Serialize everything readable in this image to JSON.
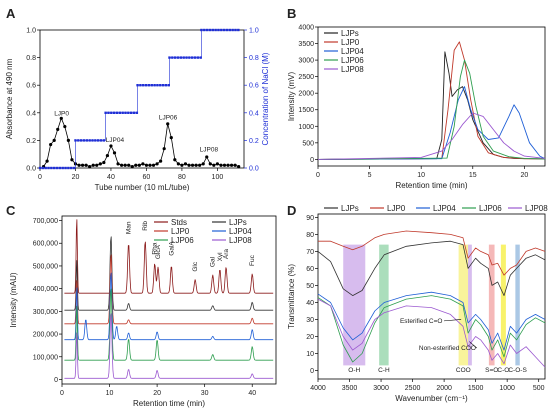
{
  "chart_data": [
    {
      "panel": "A",
      "type": "line",
      "xlabel": "Tube number (10 mL/tube)",
      "ylabel": "Absorbance at 490 nm",
      "ylabel_right": "Concentration of NaCl (M)",
      "xlim": [
        0,
        115
      ],
      "ylim": [
        0,
        1.0
      ],
      "ylim_right": [
        0,
        1.0
      ],
      "xticks": [
        "0",
        "20",
        "40",
        "60",
        "80",
        "100"
      ],
      "yticks": [
        "0.0",
        "0.2",
        "0.4",
        "0.6",
        "0.8",
        "1.0"
      ],
      "yticks_right": [
        "0.0",
        "0.2",
        "0.4",
        "0.6",
        "0.8",
        "1.0"
      ],
      "series": [
        {
          "name": "",
          "color": "#000000",
          "marker": "circle",
          "x": [
            2,
            4,
            6,
            8,
            10,
            12,
            14,
            16,
            18,
            20,
            22,
            24,
            26,
            28,
            30,
            32,
            34,
            36,
            38,
            40,
            42,
            44,
            46,
            48,
            50,
            52,
            54,
            56,
            58,
            60,
            62,
            64,
            66,
            68,
            70,
            72,
            74,
            76,
            78,
            80,
            82,
            84,
            86,
            88,
            90,
            92,
            94,
            96,
            98,
            100,
            102,
            104,
            106,
            108,
            110,
            112
          ],
          "y": [
            0.01,
            0.05,
            0.17,
            0.2,
            0.28,
            0.36,
            0.3,
            0.2,
            0.06,
            0.03,
            0.02,
            0.02,
            0.02,
            0.01,
            0.02,
            0.02,
            0.03,
            0.04,
            0.09,
            0.16,
            0.11,
            0.03,
            0.02,
            0.02,
            0.02,
            0.01,
            0.02,
            0.02,
            0.03,
            0.02,
            0.02,
            0.02,
            0.03,
            0.05,
            0.14,
            0.32,
            0.22,
            0.06,
            0.03,
            0.02,
            0.03,
            0.02,
            0.02,
            0.02,
            0.02,
            0.03,
            0.08,
            0.03,
            0.02,
            0.03,
            0.02,
            0.02,
            0.02,
            0.02,
            0.02,
            0.01
          ]
        },
        {
          "name": "",
          "color": "#1f2fd6",
          "marker": "square",
          "axis": "right",
          "steps": [
            [
              0,
              0
            ],
            [
              20,
              0
            ],
            [
              20,
              0.2
            ],
            [
              37,
              0.2
            ],
            [
              37,
              0.4
            ],
            [
              55,
              0.4
            ],
            [
              55,
              0.6
            ],
            [
              73,
              0.6
            ],
            [
              73,
              0.8
            ],
            [
              91,
              0.8
            ],
            [
              91,
              1.0
            ],
            [
              112,
              1.0
            ]
          ]
        }
      ],
      "annotations": [
        {
          "text": "LJP0",
          "x": 8,
          "y": 0.38
        },
        {
          "text": "LJP04",
          "x": 37,
          "y": 0.19
        },
        {
          "text": "LJP06",
          "x": 67,
          "y": 0.35
        },
        {
          "text": "LJP08",
          "x": 90,
          "y": 0.12
        }
      ]
    },
    {
      "panel": "B",
      "type": "line",
      "xlabel": "Retention time (min)",
      "ylabel": "Intensity (mV)",
      "xlim": [
        0,
        22
      ],
      "ylim": [
        -200,
        4000
      ],
      "xticks": [
        "0",
        "5",
        "10",
        "15",
        "20"
      ],
      "yticks": [
        "0",
        "500",
        "1000",
        "1500",
        "2000",
        "2500",
        "3000",
        "3500",
        "4000"
      ],
      "legend_position": "top-left",
      "series": [
        {
          "name": "LJPs",
          "color": "#222222",
          "x": [
            0,
            11.5,
            12,
            12.3,
            12.7,
            13,
            13.5,
            14,
            14.5,
            15,
            16,
            17,
            18,
            19,
            20,
            21,
            22
          ],
          "y": [
            0,
            20,
            600,
            3250,
            2600,
            1900,
            2100,
            2200,
            1800,
            1200,
            500,
            150,
            60,
            30,
            20,
            20,
            20
          ]
        },
        {
          "name": "LJP0",
          "color": "#c0392b",
          "x": [
            0,
            12,
            12.6,
            13.2,
            13.7,
            14.2,
            14.8,
            15.5,
            16.5,
            18,
            20,
            22
          ],
          "y": [
            0,
            30,
            1500,
            3300,
            3550,
            3000,
            1800,
            700,
            200,
            60,
            20,
            10
          ]
        },
        {
          "name": "LJP04",
          "color": "#1f5fd6",
          "x": [
            0,
            12,
            12.8,
            13.6,
            14.2,
            14.8,
            15.5,
            16.5,
            17.5,
            18.5,
            19,
            19.5,
            20.5,
            21.5,
            22
          ],
          "y": [
            0,
            20,
            800,
            1800,
            2200,
            1500,
            900,
            600,
            650,
            1300,
            1650,
            1400,
            500,
            100,
            20
          ]
        },
        {
          "name": "LJP06",
          "color": "#2e9e4f",
          "x": [
            0,
            12.5,
            13.2,
            13.8,
            14.2,
            14.7,
            15.3,
            16,
            17,
            18.5,
            20,
            22
          ],
          "y": [
            0,
            40,
            1000,
            2500,
            3000,
            2600,
            1600,
            700,
            250,
            80,
            30,
            10
          ]
        },
        {
          "name": "LJP08",
          "color": "#9b59d0",
          "x": [
            0,
            10,
            12,
            13,
            14,
            15,
            16,
            17,
            18,
            19,
            20,
            22
          ],
          "y": [
            0,
            60,
            250,
            600,
            1050,
            1400,
            1300,
            900,
            500,
            250,
            100,
            30
          ]
        }
      ]
    },
    {
      "panel": "C",
      "type": "line",
      "xlabel": "Retention time (min)",
      "ylabel": "Intensity (mAU)",
      "xlim": [
        0,
        45
      ],
      "ylim": [
        -20000,
        720000
      ],
      "xticks": [
        "0",
        "10",
        "20",
        "30",
        "40"
      ],
      "yticks": [
        "0",
        "100,000",
        "200,000",
        "300,000",
        "400,000",
        "500,000",
        "600,000",
        "700,000"
      ],
      "legend_position": "top-right",
      "series": [
        {
          "name": "Stds",
          "color": "#8b1a1a",
          "baseline": 380000,
          "peaks": [
            [
              3.1,
              340000
            ],
            [
              14,
              220000
            ],
            [
              17.5,
              230000
            ],
            [
              19.5,
              130000
            ],
            [
              20.2,
              115000
            ],
            [
              23,
              120000
            ],
            [
              28,
              60000
            ],
            [
              31.7,
              80000
            ],
            [
              33.2,
              105000
            ],
            [
              34.5,
              115000
            ],
            [
              40,
              85000
            ]
          ]
        },
        {
          "name": "LJPs",
          "color": "#333333",
          "baseline": 305000,
          "peaks": [
            [
              3.1,
              230000
            ],
            [
              10.3,
              330000
            ],
            [
              14,
              30000
            ],
            [
              31.7,
              20000
            ],
            [
              40,
              35000
            ]
          ]
        },
        {
          "name": "LJP0",
          "color": "#c0392b",
          "baseline": 245000,
          "peaks": [
            [
              3.1,
              200000
            ],
            [
              10.3,
              310000
            ],
            [
              14,
              18000
            ],
            [
              40,
              25000
            ]
          ]
        },
        {
          "name": "LJP04",
          "color": "#1f5fd6",
          "baseline": 175000,
          "peaks": [
            [
              3.1,
              240000
            ],
            [
              5,
              90000
            ],
            [
              10.3,
              300000
            ],
            [
              11.5,
              60000
            ],
            [
              14,
              30000
            ],
            [
              20,
              35000
            ],
            [
              31.7,
              15000
            ],
            [
              40,
              45000
            ]
          ]
        },
        {
          "name": "LJP06",
          "color": "#2e9e4f",
          "baseline": 85000,
          "peaks": [
            [
              3.1,
              250000
            ],
            [
              10.3,
              320000
            ],
            [
              14,
              95000
            ],
            [
              20,
              90000
            ],
            [
              31.7,
              25000
            ],
            [
              40,
              60000
            ]
          ]
        },
        {
          "name": "LJP08",
          "color": "#9b59d0",
          "baseline": 5000,
          "peaks": [
            [
              3.1,
              210000
            ],
            [
              10.3,
              290000
            ],
            [
              14,
              40000
            ],
            [
              20,
              35000
            ],
            [
              40,
              20000
            ]
          ]
        }
      ],
      "annotations": [
        {
          "text": "Man",
          "x": 14,
          "y": 640000
        },
        {
          "text": "Rib",
          "x": 17.5,
          "y": 655000
        },
        {
          "text": "Rha",
          "x": 19.5,
          "y": 550000
        },
        {
          "text": "GlcA",
          "x": 20.2,
          "y": 530000
        },
        {
          "text": "GalA",
          "x": 23,
          "y": 545000
        },
        {
          "text": "Glc",
          "x": 28,
          "y": 475000
        },
        {
          "text": "Gal",
          "x": 31.7,
          "y": 495000
        },
        {
          "text": "Xyl",
          "x": 33.2,
          "y": 520000
        },
        {
          "text": "Ara",
          "x": 34.5,
          "y": 530000
        },
        {
          "text": "Fuc",
          "x": 40,
          "y": 500000
        }
      ]
    },
    {
      "panel": "D",
      "type": "line",
      "xlabel": "Wavenumber (cm⁻¹)",
      "ylabel": "Transmittance (%)",
      "xlim": [
        4000,
        400
      ],
      "ylim": [
        -5,
        92
      ],
      "xticks": [
        "4000",
        "3500",
        "3000",
        "2500",
        "2000",
        "1500",
        "1000",
        "500"
      ],
      "yticks": [
        "0",
        "10",
        "20",
        "30",
        "40",
        "50",
        "60",
        "70",
        "80",
        "90"
      ],
      "legend_position": "top",
      "bands": [
        {
          "label": "O-H",
          "from": 3600,
          "to": 3250,
          "color": "#c9a6e8"
        },
        {
          "label": "C-H",
          "from": 3030,
          "to": 2880,
          "color": "#8fd3a5"
        },
        {
          "label": "COO",
          "from": 1770,
          "to": 1620,
          "color": "#f7f07a"
        },
        {
          "label": "",
          "from": 1620,
          "to": 1560,
          "color": "#c9a6e8"
        },
        {
          "label": "S=O",
          "from": 1290,
          "to": 1200,
          "color": "#f2a0a0"
        },
        {
          "label": "C-O",
          "from": 1100,
          "to": 1020,
          "color": "#f5ee3a"
        },
        {
          "label": "C-O-S",
          "from": 870,
          "to": 800,
          "color": "#8fb5dc"
        }
      ],
      "series": [
        {
          "name": "LJPs",
          "color": "#333333",
          "x": [
            4000,
            3800,
            3600,
            3450,
            3300,
            3100,
            2950,
            2600,
            2200,
            1900,
            1700,
            1620,
            1500,
            1420,
            1300,
            1240,
            1150,
            1050,
            950,
            850,
            700,
            550,
            400
          ],
          "y": [
            70,
            64,
            48,
            44,
            47,
            60,
            68,
            73,
            75,
            76,
            74,
            60,
            66,
            63,
            60,
            50,
            52,
            44,
            56,
            60,
            66,
            68,
            65
          ]
        },
        {
          "name": "LJP0",
          "color": "#c0392b",
          "x": [
            4000,
            3800,
            3600,
            3450,
            3300,
            3100,
            2950,
            2600,
            2200,
            1900,
            1700,
            1620,
            1500,
            1420,
            1300,
            1240,
            1150,
            1050,
            950,
            850,
            700,
            550,
            400
          ],
          "y": [
            76,
            76,
            73,
            71,
            73,
            78,
            80,
            82,
            81,
            80,
            78,
            66,
            72,
            70,
            68,
            62,
            63,
            56,
            60,
            62,
            70,
            72,
            70
          ]
        },
        {
          "name": "LJP04",
          "color": "#1f5fd6",
          "x": [
            4000,
            3800,
            3600,
            3450,
            3300,
            3100,
            2950,
            2600,
            2200,
            1900,
            1700,
            1620,
            1500,
            1420,
            1300,
            1240,
            1150,
            1050,
            950,
            850,
            700,
            550,
            400
          ],
          "y": [
            45,
            40,
            25,
            18,
            22,
            35,
            40,
            44,
            46,
            44,
            40,
            28,
            33,
            30,
            24,
            16,
            22,
            12,
            26,
            22,
            30,
            33,
            30
          ]
        },
        {
          "name": "LJP06",
          "color": "#2e9e4f",
          "x": [
            4000,
            3800,
            3600,
            3450,
            3300,
            3100,
            2950,
            2600,
            2200,
            1900,
            1700,
            1620,
            1500,
            1420,
            1300,
            1240,
            1150,
            1050,
            950,
            850,
            700,
            550,
            400
          ],
          "y": [
            43,
            38,
            15,
            5,
            10,
            28,
            37,
            42,
            44,
            42,
            38,
            22,
            30,
            27,
            20,
            12,
            18,
            8,
            22,
            18,
            27,
            31,
            28
          ]
        },
        {
          "name": "LJP08",
          "color": "#9b59d0",
          "x": [
            4000,
            3800,
            3600,
            3450,
            3300,
            3100,
            2950,
            2600,
            2200,
            1900,
            1700,
            1620,
            1500,
            1420,
            1300,
            1240,
            1150,
            1050,
            950,
            850,
            700,
            550,
            400
          ],
          "y": [
            42,
            38,
            20,
            12,
            16,
            30,
            34,
            38,
            37,
            33,
            26,
            14,
            20,
            18,
            12,
            6,
            10,
            4,
            15,
            10,
            14,
            8,
            2
          ]
        }
      ],
      "annotations": [
        {
          "text": "Esterified C=O",
          "x": 2700,
          "y": 28
        },
        {
          "text": "Non-esterified COO",
          "x": 2400,
          "y": 12
        }
      ]
    }
  ]
}
